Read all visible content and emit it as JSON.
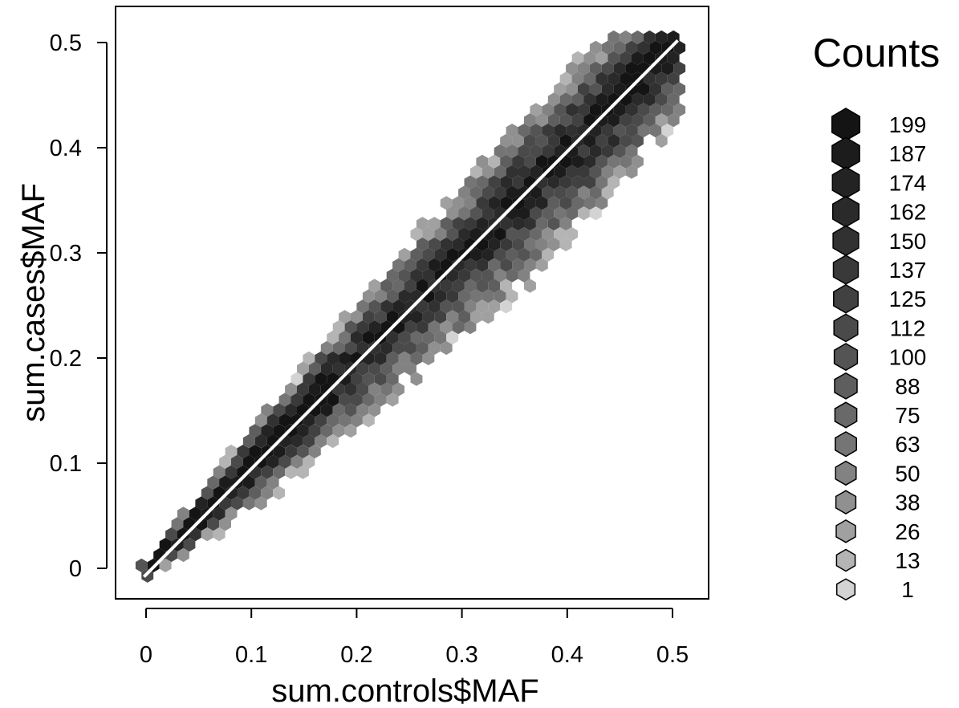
{
  "chart_data": {
    "type": "heatmap",
    "subtype": "hexbin",
    "title": "",
    "xlabel": "sum.controls$MAF",
    "ylabel": "sum.cases$MAF",
    "xlim": [
      -0.03,
      0.53
    ],
    "ylim": [
      -0.03,
      0.53
    ],
    "x_ticks": [
      0,
      0.1,
      0.2,
      0.3,
      0.4,
      0.5
    ],
    "y_ticks": [
      0,
      0.1,
      0.2,
      0.3,
      0.4,
      0.5
    ],
    "x_tick_labels": [
      "0",
      "0.1",
      "0.2",
      "0.3",
      "0.4",
      "0.5"
    ],
    "y_tick_labels": [
      "0",
      "0.1",
      "0.2",
      "0.3",
      "0.4",
      "0.5"
    ],
    "reference_line": {
      "type": "identity",
      "from": [
        0,
        0
      ],
      "to": [
        0.5,
        0.5
      ],
      "color": "#ffffff"
    },
    "density": {
      "description_free": true,
      "x_range": [
        0,
        0.5
      ],
      "band_profile": [
        {
          "x": 0.0,
          "halfwidth": 0.012
        },
        {
          "x": 0.1,
          "halfwidth": 0.04
        },
        {
          "x": 0.2,
          "halfwidth": 0.06
        },
        {
          "x": 0.3,
          "halfwidth": 0.075
        },
        {
          "x": 0.4,
          "halfwidth": 0.085
        },
        {
          "x": 0.5,
          "halfwidth": 0.07
        }
      ],
      "peak_count": 199
    },
    "legend": {
      "title": "Counts",
      "placement": "right",
      "levels": [
        "199",
        "187",
        "174",
        "162",
        "150",
        "137",
        "125",
        "112",
        "100",
        "88",
        "75",
        "63",
        "50",
        "38",
        "26",
        "13",
        "1"
      ],
      "colors": [
        "#141414",
        "#1c1c1c",
        "#232323",
        "#2a2a2a",
        "#313131",
        "#393939",
        "#414141",
        "#4a4a4a",
        "#545454",
        "#5e5e5e",
        "#696969",
        "#757575",
        "#828282",
        "#909090",
        "#a0a0a0",
        "#b4b4b4",
        "#d3d3d3"
      ]
    }
  }
}
